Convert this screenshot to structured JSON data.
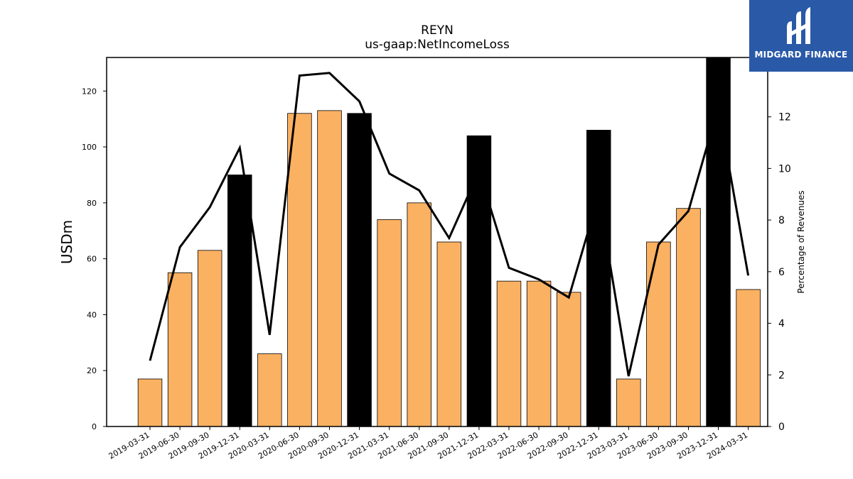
{
  "logo": {
    "text": "MIDGARD FINANCE",
    "background": "#2a59a8"
  },
  "chart_data": {
    "type": "bar",
    "title": "REYN",
    "subtitle": "us-gaap:NetIncomeLoss",
    "ylabel": "USDm",
    "ylabel_right": "Percentage of Revenues",
    "categories": [
      "2019-03-31",
      "2019-06-30",
      "2019-09-30",
      "2019-12-31",
      "2020-03-31",
      "2020-06-30",
      "2020-09-30",
      "2020-12-31",
      "2021-03-31",
      "2021-06-30",
      "2021-09-30",
      "2021-12-31",
      "2022-03-31",
      "2022-06-30",
      "2022-09-30",
      "2022-12-31",
      "2023-03-31",
      "2023-06-30",
      "2023-09-30",
      "2023-12-31",
      "2024-03-31"
    ],
    "series": [
      {
        "values": [
          17,
          55,
          63,
          90,
          26,
          112,
          113,
          112,
          74,
          80,
          66,
          104,
          52,
          52,
          48,
          106,
          17,
          66,
          78,
          132,
          49
        ],
        "highlight": [
          false,
          false,
          false,
          true,
          false,
          false,
          false,
          true,
          false,
          false,
          false,
          true,
          false,
          false,
          false,
          true,
          false,
          false,
          false,
          true,
          false
        ],
        "color": "#fbb162",
        "highlight_color": "#000000"
      },
      {
        "type": "line",
        "axis": "right",
        "values": [
          2.55,
          6.95,
          8.5,
          10.8,
          3.55,
          13.6,
          13.7,
          12.6,
          9.8,
          9.15,
          7.3,
          9.9,
          6.15,
          5.7,
          5.0,
          8.95,
          1.95,
          7.05,
          8.35,
          12.4,
          5.85
        ],
        "color": "#000000"
      }
    ],
    "ylim": [
      0,
      132
    ],
    "yticks": [
      0,
      20,
      40,
      60,
      80,
      100,
      120
    ],
    "y2lim": [
      0,
      14.3
    ],
    "y2ticks": [
      0,
      2,
      4,
      6,
      8,
      10,
      12
    ],
    "grid": false,
    "legend": "none"
  }
}
